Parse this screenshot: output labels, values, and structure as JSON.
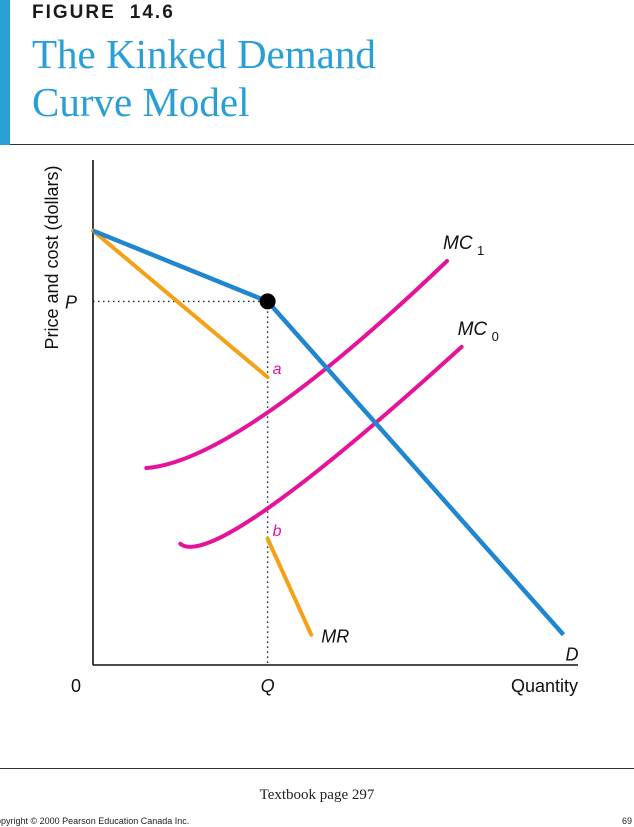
{
  "header": {
    "figure_word": "FIGURE",
    "figure_number": "14.6",
    "title_line1": "The Kinked Demand",
    "title_line2": "Curve Model"
  },
  "footer": {
    "page_reference": "Textbook page 297",
    "copyright": "opyright © 2000 Pearson Education Canada Inc.",
    "page_number": "69"
  },
  "colors": {
    "accent": "#2a9fd6",
    "demand": "#1f86cf",
    "marginal_revenue": "#f5a118",
    "marginal_cost": "#e4139a",
    "axis": "#111111"
  },
  "chart_data": {
    "type": "line",
    "title": "The Kinked Demand Curve Model",
    "xlabel": "Quantity",
    "ylabel": "Price and cost (dollars)",
    "xlim": [
      0,
      10
    ],
    "ylim": [
      0,
      10
    ],
    "x_ticks": [
      {
        "value": 0,
        "label": "0"
      },
      {
        "value": 3.6,
        "label": "Q"
      }
    ],
    "y_ticks": [
      {
        "value": 7.2,
        "label": "P"
      }
    ],
    "series": [
      {
        "name": "D",
        "color": "#1f86cf",
        "points": [
          [
            0,
            8.6
          ],
          [
            3.6,
            7.2
          ],
          [
            9.7,
            0.6
          ]
        ]
      },
      {
        "name": "MR",
        "color": "#f5a118",
        "segments": [
          [
            [
              0,
              8.6
            ],
            [
              3.6,
              5.7
            ]
          ],
          [
            [
              3.6,
              2.5
            ],
            [
              4.5,
              0.6
            ]
          ]
        ]
      },
      {
        "name": "MC1",
        "label": "MC",
        "subscript": "1",
        "color": "#e4139a",
        "points": [
          [
            1.1,
            3.9
          ],
          [
            3.6,
            5.0
          ],
          [
            7.3,
            8.0
          ]
        ]
      },
      {
        "name": "MC0",
        "label": "MC",
        "subscript": "0",
        "color": "#e4139a",
        "points": [
          [
            1.8,
            2.4
          ],
          [
            3.6,
            3.1
          ],
          [
            7.6,
            6.3
          ]
        ]
      }
    ],
    "kink": {
      "x": 3.6,
      "y": 7.2
    },
    "gap": {
      "x": 3.6,
      "top": 5.7,
      "bottom": 2.5
    },
    "annotations": [
      {
        "text": "a",
        "x": 3.6,
        "y": 5.7,
        "color": "#e4139a"
      },
      {
        "text": "b",
        "x": 3.6,
        "y": 2.5,
        "color": "#e4139a"
      }
    ],
    "grid": false,
    "legend": "none"
  }
}
